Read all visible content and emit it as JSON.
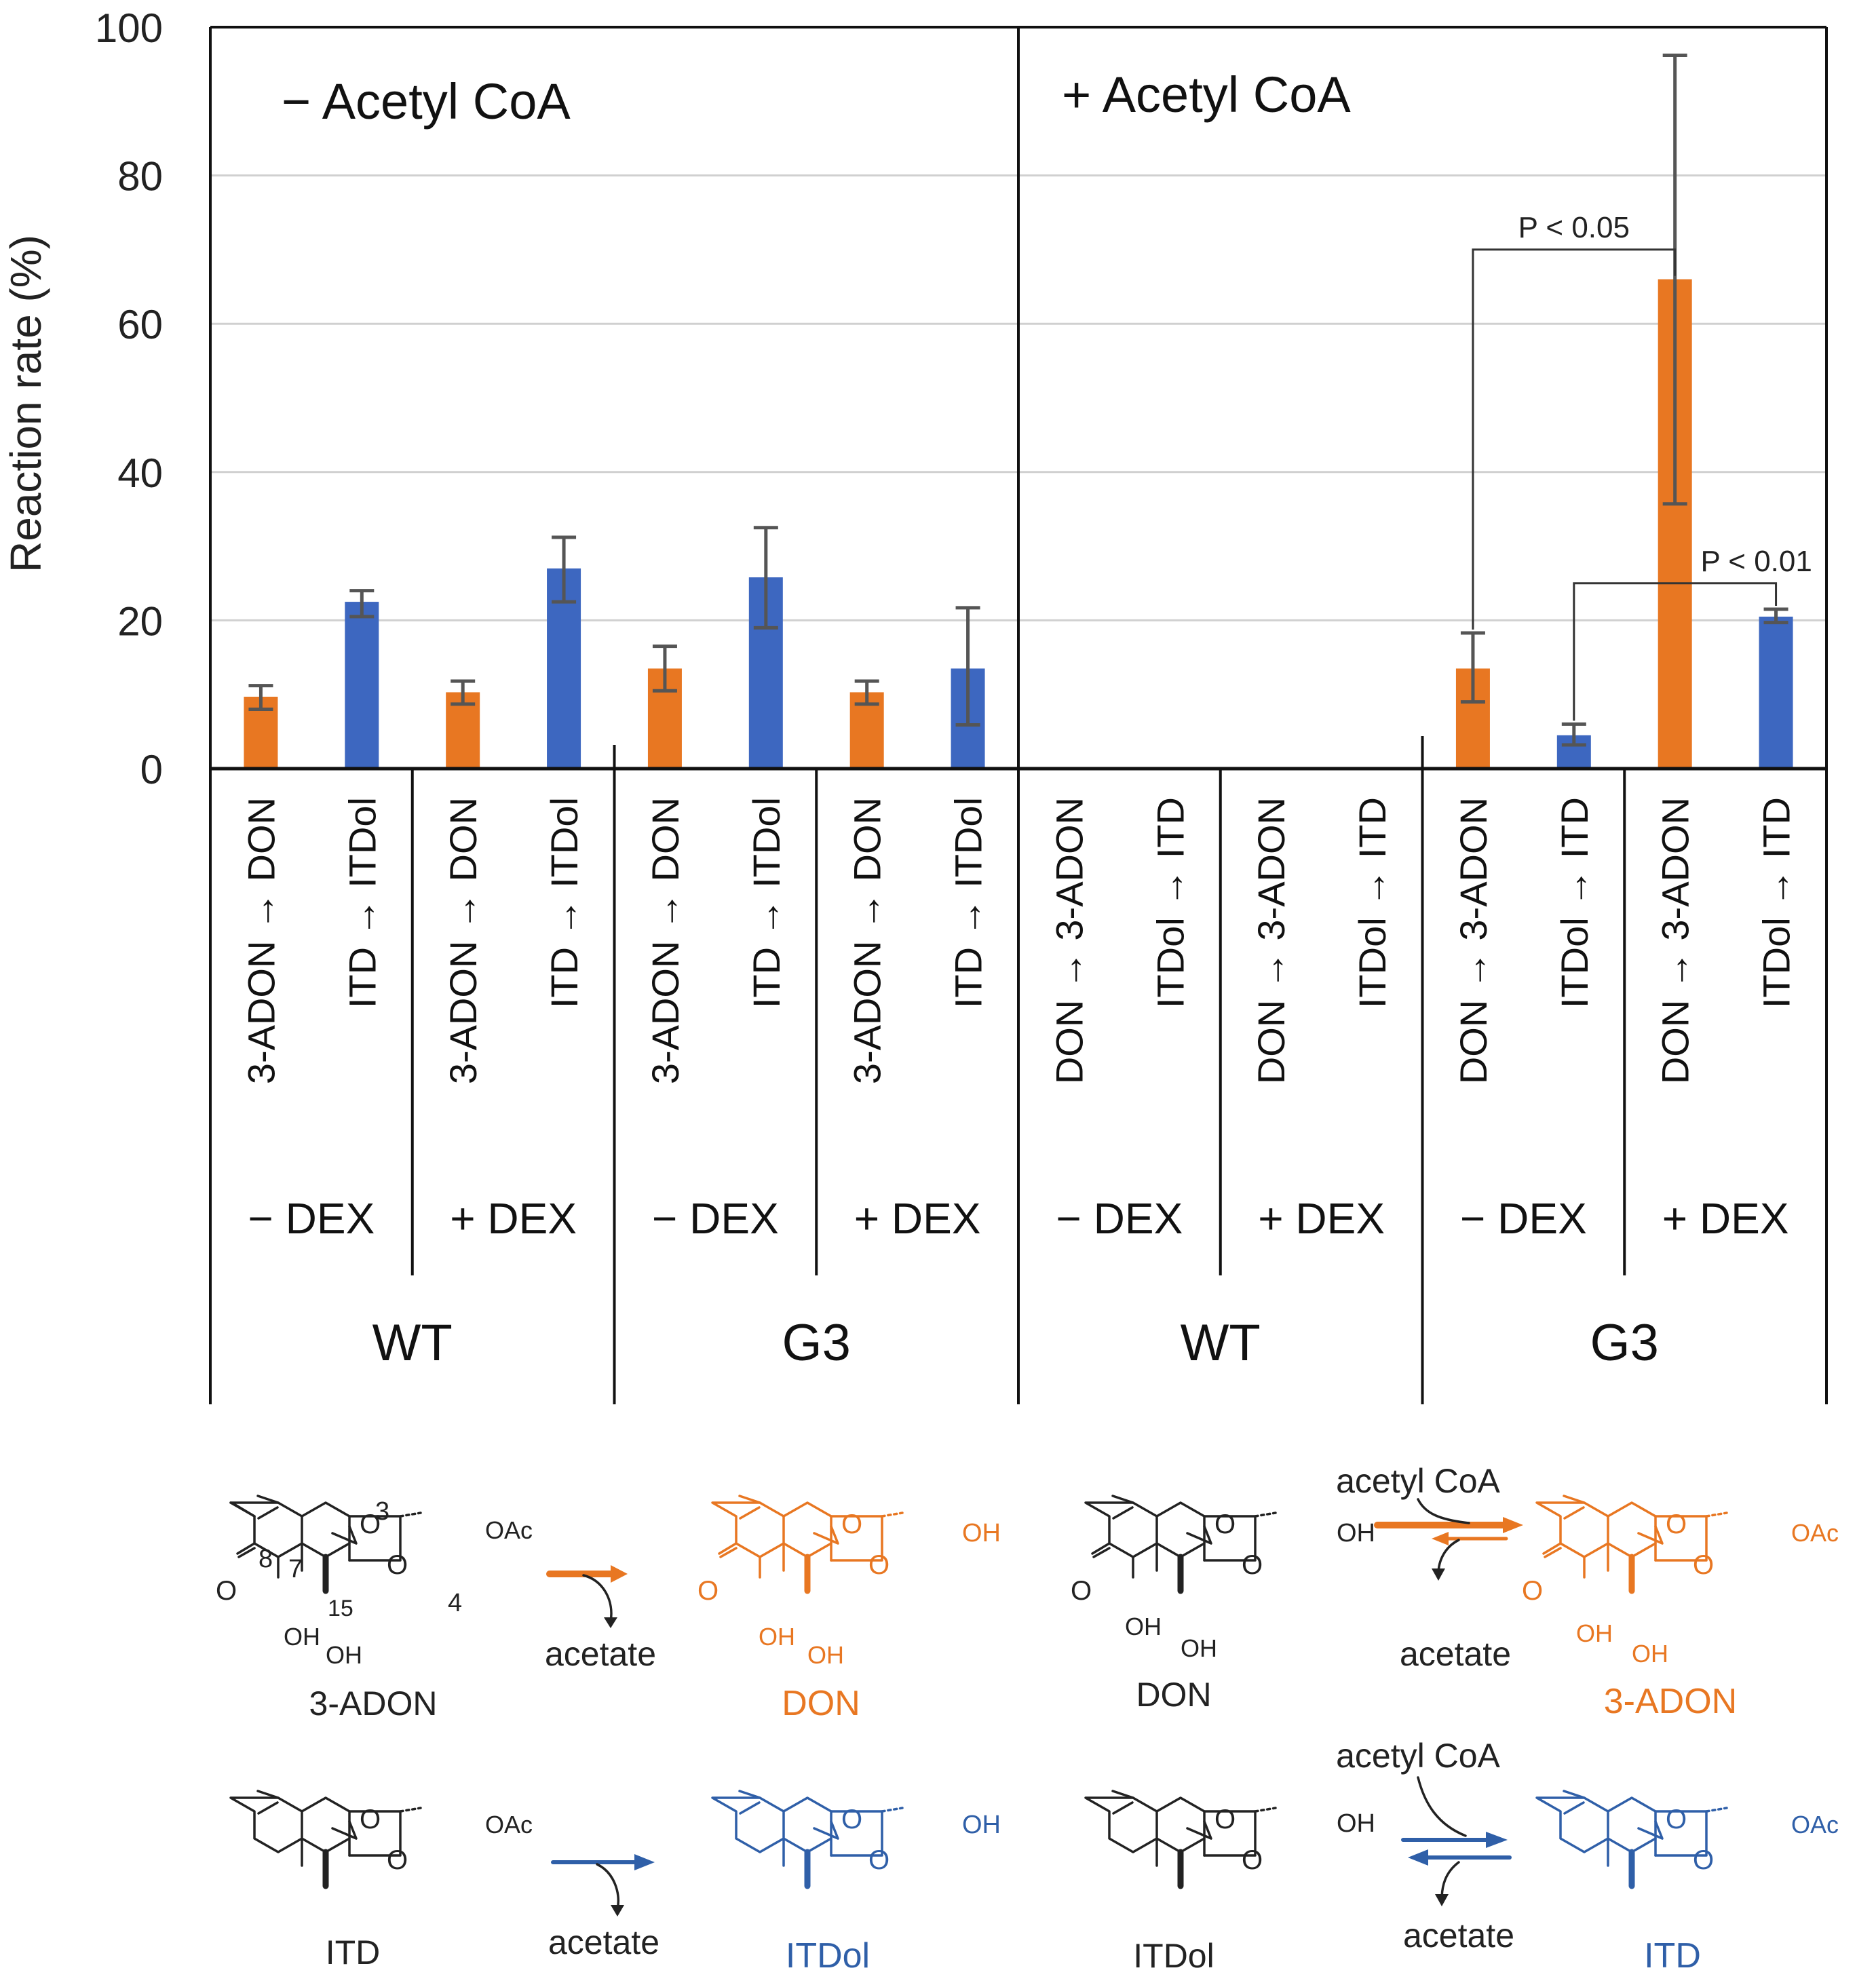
{
  "chart_data": {
    "type": "bar",
    "ylabel": "Reaction rate (%)",
    "ylim": [
      0,
      100
    ],
    "yticks": [
      0,
      20,
      40,
      60,
      80,
      100
    ],
    "grid": true,
    "panels": [
      {
        "title": "− Acetyl CoA"
      },
      {
        "title": "+ Acetyl CoA"
      }
    ],
    "bars": [
      {
        "label": "3-ADON → DON",
        "value": 9.7,
        "err_low": 8.0,
        "err_high": 11.2,
        "color": "#E87722",
        "strain": "WT",
        "dex": "− DEX",
        "acetyl": "− Acetyl CoA"
      },
      {
        "label": "ITD → ITDol",
        "value": 22.5,
        "err_low": 20.5,
        "err_high": 24.0,
        "color": "#3D67C0",
        "strain": "WT",
        "dex": "− DEX",
        "acetyl": "− Acetyl CoA"
      },
      {
        "label": "3-ADON → DON",
        "value": 10.3,
        "err_low": 8.7,
        "err_high": 11.8,
        "color": "#E87722",
        "strain": "WT",
        "dex": "+ DEX",
        "acetyl": "− Acetyl CoA"
      },
      {
        "label": "ITD → ITDol",
        "value": 27.0,
        "err_low": 22.5,
        "err_high": 31.2,
        "color": "#3D67C0",
        "strain": "WT",
        "dex": "+ DEX",
        "acetyl": "− Acetyl CoA"
      },
      {
        "label": "3-ADON → DON",
        "value": 13.5,
        "err_low": 10.5,
        "err_high": 16.5,
        "color": "#E87722",
        "strain": "G3",
        "dex": "− DEX",
        "acetyl": "− Acetyl CoA"
      },
      {
        "label": "ITD → ITDol",
        "value": 25.8,
        "err_low": 19.0,
        "err_high": 32.5,
        "color": "#3D67C0",
        "strain": "G3",
        "dex": "− DEX",
        "acetyl": "− Acetyl CoA"
      },
      {
        "label": "3-ADON → DON",
        "value": 10.3,
        "err_low": 8.7,
        "err_high": 11.8,
        "color": "#E87722",
        "strain": "G3",
        "dex": "+ DEX",
        "acetyl": "− Acetyl CoA"
      },
      {
        "label": "ITD → ITDol",
        "value": 13.5,
        "err_low": 5.9,
        "err_high": 21.7,
        "color": "#3D67C0",
        "strain": "G3",
        "dex": "+ DEX",
        "acetyl": "− Acetyl CoA"
      },
      {
        "label": "DON → 3-ADON",
        "value": 0,
        "color": "#E87722",
        "strain": "WT",
        "dex": "− DEX",
        "acetyl": "+ Acetyl CoA"
      },
      {
        "label": "ITDol → ITD",
        "value": 0,
        "color": "#3D67C0",
        "strain": "WT",
        "dex": "− DEX",
        "acetyl": "+ Acetyl CoA"
      },
      {
        "label": "DON → 3-ADON",
        "value": 0,
        "color": "#E87722",
        "strain": "WT",
        "dex": "+ DEX",
        "acetyl": "+ Acetyl CoA"
      },
      {
        "label": "ITDol → ITD",
        "value": 0,
        "color": "#3D67C0",
        "strain": "WT",
        "dex": "+ DEX",
        "acetyl": "+ Acetyl CoA"
      },
      {
        "label": "DON → 3-ADON",
        "value": 13.5,
        "err_low": 9.0,
        "err_high": 18.3,
        "color": "#E87722",
        "strain": "G3",
        "dex": "− DEX",
        "acetyl": "+ Acetyl CoA"
      },
      {
        "label": "ITDol → ITD",
        "value": 4.5,
        "err_low": 3.2,
        "err_high": 6.0,
        "color": "#3D67C0",
        "strain": "G3",
        "dex": "− DEX",
        "acetyl": "+ Acetyl CoA"
      },
      {
        "label": "DON → 3-ADON",
        "value": 66.0,
        "err_low": 35.7,
        "err_high": 96.2,
        "color": "#E87722",
        "strain": "G3",
        "dex": "+ DEX",
        "acetyl": "+ Acetyl CoA"
      },
      {
        "label": "ITDol → ITD",
        "value": 20.5,
        "err_low": 19.7,
        "err_high": 21.5,
        "color": "#3D67C0",
        "strain": "G3",
        "dex": "+ DEX",
        "acetyl": "+ Acetyl CoA"
      }
    ],
    "dex_labels": [
      "− DEX",
      "+ DEX",
      "− DEX",
      "+ DEX",
      "− DEX",
      "+ DEX",
      "− DEX",
      "+ DEX"
    ],
    "strain_labels": [
      "WT",
      "G3",
      "WT",
      "G3"
    ],
    "annotations": [
      {
        "text": "P < 0.05",
        "from_bar": 12,
        "to_bar": 14,
        "level": 70
      },
      {
        "text": "P < 0.01",
        "from_bar": 13,
        "to_bar": 15,
        "level": 25
      }
    ]
  },
  "scheme": {
    "row1": {
      "sub1": "3-ADON",
      "prod1": "DON",
      "side1": "acetate",
      "sub2": "DON",
      "prod2": "3-ADON",
      "reagent2": "acetyl CoA",
      "side2": "acetate",
      "atom_numbers": [
        "3",
        "8",
        "7",
        "15",
        "4"
      ]
    },
    "row2": {
      "sub1": "ITD",
      "prod1": "ITDol",
      "side1": "acetate",
      "sub2": "ITDol",
      "prod2": "ITD",
      "reagent2": "acetyl CoA",
      "side2": "acetate"
    },
    "groups": {
      "oac": "OAc",
      "oh": "OH",
      "o": "O",
      "o_bridge": "O"
    },
    "colors": {
      "orange": "#E87722",
      "blue": "#2F5FA8",
      "black": "#222222"
    }
  }
}
